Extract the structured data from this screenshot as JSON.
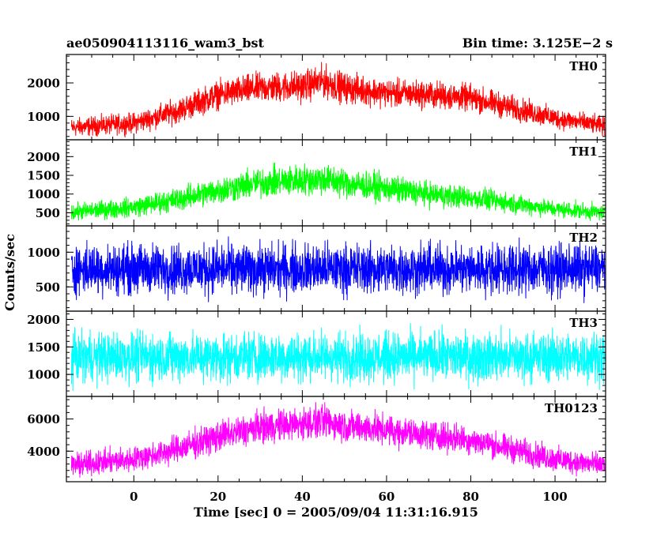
{
  "chart_data": {
    "type": "line",
    "title_left": "ae050904113116_wam3_bst",
    "title_right": "Bin time: 3.125E−2 s",
    "xlabel": "Time [sec] 0 = 2005/09/04 11:31:16.915",
    "ylabel": "Counts/sec",
    "xlim": [
      -16,
      112
    ],
    "x_ticks": [
      0,
      20,
      40,
      60,
      80,
      100
    ],
    "x_tick_labels": [
      "0",
      "20",
      "40",
      "60",
      "80",
      "100"
    ],
    "panels": [
      {
        "name": "TH0",
        "color": "#ff0000",
        "ylim": [
          300,
          2850
        ],
        "y_ticks": [
          1000,
          2000
        ],
        "y_tick_labels": [
          "1000",
          "2000"
        ],
        "profile_x": [
          -16,
          0,
          10,
          20,
          30,
          40,
          45,
          50,
          60,
          70,
          80,
          90,
          100,
          112
        ],
        "profile_mean": [
          650,
          800,
          1150,
          1650,
          1850,
          1900,
          2050,
          1850,
          1700,
          1650,
          1550,
          1250,
          950,
          700
        ],
        "profile_spread": [
          320,
          350,
          420,
          480,
          520,
          540,
          560,
          520,
          480,
          480,
          460,
          420,
          360,
          320
        ]
      },
      {
        "name": "TH1",
        "color": "#00ff00",
        "ylim": [
          150,
          2450
        ],
        "y_ticks": [
          500,
          1000,
          1500,
          2000
        ],
        "y_tick_labels": [
          "500",
          "1000",
          "1500",
          "2000"
        ],
        "profile_x": [
          -16,
          0,
          10,
          20,
          30,
          40,
          45,
          50,
          60,
          70,
          80,
          90,
          100,
          112
        ],
        "profile_mean": [
          500,
          650,
          850,
          1100,
          1300,
          1380,
          1400,
          1300,
          1150,
          1000,
          900,
          750,
          600,
          500
        ],
        "profile_spread": [
          260,
          300,
          360,
          420,
          460,
          480,
          480,
          460,
          420,
          380,
          340,
          300,
          260,
          240
        ]
      },
      {
        "name": "TH2",
        "color": "#0000ff",
        "ylim": [
          150,
          1380
        ],
        "y_ticks": [
          500,
          1000
        ],
        "y_tick_labels": [
          "500",
          "1000"
        ],
        "profile_x": [
          -16,
          112
        ],
        "profile_mean": [
          760,
          760
        ],
        "profile_spread": [
          420,
          420
        ]
      },
      {
        "name": "TH3",
        "color": "#00ffff",
        "ylim": [
          600,
          2150
        ],
        "y_ticks": [
          1000,
          1500,
          2000
        ],
        "y_tick_labels": [
          "1000",
          "1500",
          "2000"
        ],
        "profile_x": [
          -16,
          112
        ],
        "profile_mean": [
          1320,
          1320
        ],
        "profile_spread": [
          520,
          520
        ]
      },
      {
        "name": "TH0123",
        "color": "#ff00ff",
        "ylim": [
          2100,
          7400
        ],
        "y_ticks": [
          4000,
          6000
        ],
        "y_tick_labels": [
          "4000",
          "6000"
        ],
        "profile_x": [
          -16,
          0,
          10,
          20,
          30,
          40,
          45,
          50,
          60,
          70,
          80,
          90,
          100,
          112
        ],
        "profile_mean": [
          3100,
          3500,
          4100,
          4900,
          5500,
          5700,
          5850,
          5600,
          5300,
          5000,
          4700,
          4100,
          3500,
          3100
        ],
        "profile_spread": [
          850,
          900,
          1000,
          1100,
          1150,
          1200,
          1200,
          1150,
          1100,
          1050,
          1000,
          950,
          900,
          850
        ]
      }
    ]
  }
}
